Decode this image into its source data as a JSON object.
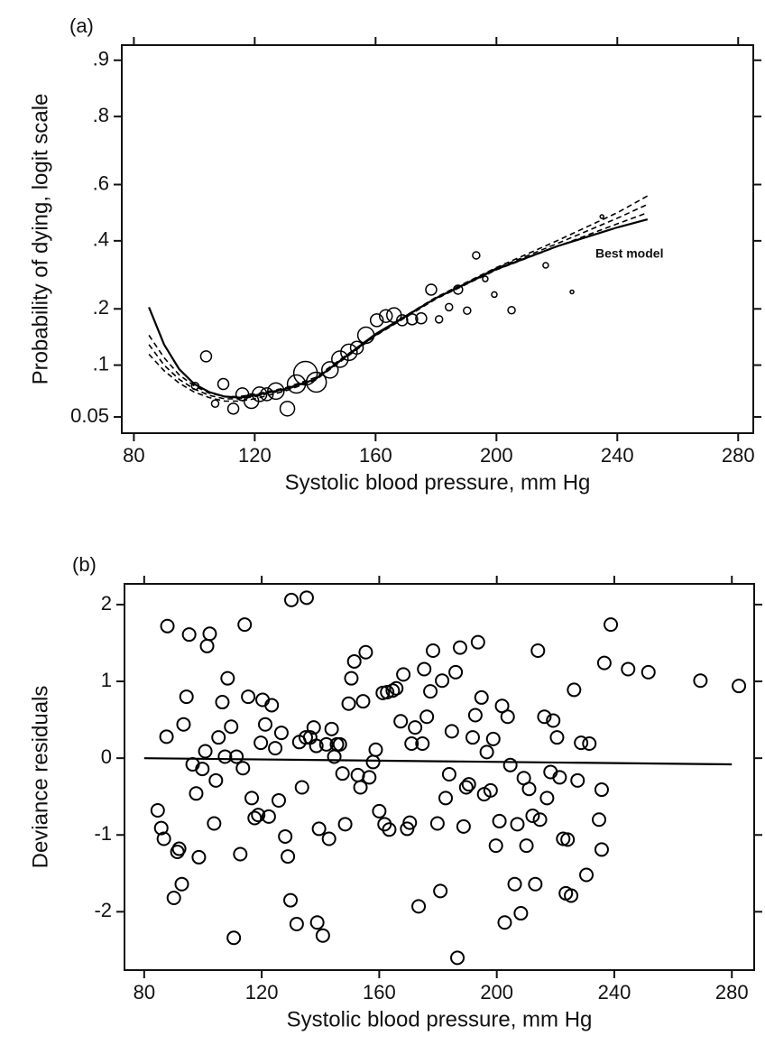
{
  "chart_data": [
    {
      "type": "scatter",
      "title": "(a)",
      "xlabel": "Systolic blood pressure, mm Hg",
      "ylabel": "Probability of dying, logit scale",
      "yscale": "logit",
      "xlim": [
        76,
        285
      ],
      "ylim": [
        0.04,
        0.918
      ],
      "xticks": [
        80,
        120,
        160,
        200,
        240,
        280
      ],
      "yticks": [
        0.05,
        {
          "value": 0.1,
          "label": ".1"
        },
        {
          "value": 0.2,
          "label": ".2"
        },
        {
          "value": 0.4,
          "label": ".4"
        },
        {
          "value": 0.6,
          "label": ".6"
        },
        {
          "value": 0.8,
          "label": ".8"
        },
        {
          "value": 0.9,
          "label": ".9"
        }
      ],
      "points": {
        "color": "#000000",
        "x": [
          103.9,
          100.3,
          106.9,
          109.6,
          112.9,
          115.9,
          118.9,
          121.6,
          124,
          127,
          130.8,
          133.8,
          136.8,
          140.4,
          144.9,
          148.2,
          151.2,
          153.8,
          156.8,
          160.4,
          163.4,
          166.1,
          168.8,
          172.1,
          175.1,
          178.4,
          181,
          184.3,
          187.3,
          190.3,
          193.3,
          196.3,
          199.3,
          205,
          216.3,
          225,
          234.9
        ],
        "values": [
          0.112,
          0.076,
          0.06,
          0.078,
          0.056,
          0.068,
          0.062,
          0.068,
          0.068,
          0.071,
          0.056,
          0.078,
          0.09,
          0.08,
          0.094,
          0.108,
          0.118,
          0.125,
          0.146,
          0.175,
          0.184,
          0.186,
          0.175,
          0.177,
          0.179,
          0.248,
          0.177,
          0.204,
          0.248,
          0.196,
          0.351,
          0.278,
          0.235,
          0.197,
          0.319,
          0.242,
          0.486
        ],
        "sizes": [
          6,
          4,
          4,
          6,
          6,
          7,
          8,
          8,
          7,
          9,
          8,
          10,
          13,
          11,
          9,
          9,
          9,
          7,
          9,
          7,
          7,
          8,
          6,
          6,
          6,
          6,
          4,
          4,
          5,
          4,
          4,
          3,
          3,
          4,
          3,
          2,
          2
        ]
      },
      "series": [
        {
          "name": "Best model",
          "color": "#000000",
          "dash": false,
          "x": [
            85,
            90,
            95,
            100,
            105,
            110,
            115,
            120,
            130,
            140,
            160,
            180,
            200,
            220,
            240,
            250
          ],
          "values": [
            0.204,
            0.13,
            0.095,
            0.078,
            0.07,
            0.066,
            0.065,
            0.067,
            0.073,
            0.083,
            0.148,
            0.226,
            0.307,
            0.381,
            0.447,
            0.476
          ]
        },
        {
          "color": "#000000",
          "dash": true,
          "x": [
            85,
            90,
            95,
            100,
            105,
            110,
            115,
            120,
            130,
            140,
            160,
            180,
            200,
            220,
            240,
            250
          ],
          "values": [
            0.146,
            0.11,
            0.088,
            0.076,
            0.069,
            0.066,
            0.066,
            0.068,
            0.074,
            0.085,
            0.148,
            0.228,
            0.312,
            0.4,
            0.5,
            0.56
          ]
        },
        {
          "color": "#000000",
          "dash": true,
          "x": [
            85,
            90,
            95,
            100,
            105,
            110,
            115,
            120,
            130,
            140,
            160,
            180,
            200,
            220,
            240,
            250
          ],
          "values": [
            0.13,
            0.1,
            0.083,
            0.073,
            0.067,
            0.064,
            0.064,
            0.066,
            0.072,
            0.083,
            0.146,
            0.226,
            0.31,
            0.39,
            0.48,
            0.53
          ]
        },
        {
          "color": "#000000",
          "dash": true,
          "x": [
            85,
            90,
            95,
            100,
            105,
            110,
            115,
            120,
            130,
            140,
            160,
            180,
            200,
            220,
            240,
            250
          ],
          "values": [
            0.115,
            0.093,
            0.079,
            0.07,
            0.065,
            0.062,
            0.062,
            0.064,
            0.071,
            0.082,
            0.145,
            0.224,
            0.305,
            0.38,
            0.46,
            0.5
          ]
        }
      ]
    },
    {
      "type": "scatter",
      "title": "(b)",
      "xlabel": "Systolic blood pressure, mm Hg",
      "ylabel": "Deviance residuals",
      "xlim": [
        73.3,
        287.6
      ],
      "ylim": [
        -2.76,
        2.27
      ],
      "xticks": [
        80,
        120,
        160,
        200,
        240,
        280
      ],
      "yticks": [
        -2,
        -1,
        0,
        1,
        2
      ],
      "points": {
        "color": "#000000",
        "x": [
          84.6,
          85.8,
          86.7,
          87.9,
          87.6,
          90.1,
          91.3,
          91.9,
          92.8,
          93.4,
          94.4,
          95.3,
          96.5,
          97.7,
          98.6,
          99.8,
          100.8,
          101.4,
          102.3,
          103.8,
          104.4,
          105.3,
          106.6,
          107.5,
          108.4,
          109.6,
          110.5,
          111.4,
          112.7,
          113.6,
          114.2,
          115.4,
          116.6,
          117.6,
          118.8,
          119.7,
          120.3,
          121.2,
          122.4,
          123.4,
          124.6,
          125.8,
          126.7,
          128,
          128.9,
          129.8,
          130.1,
          131.9,
          132.8,
          133.7,
          135,
          135.3,
          136.5,
          137.7,
          138.6,
          139.5,
          138.9,
          140.8,
          142,
          142.9,
          143.8,
          144.7,
          145.6,
          146.6,
          147.5,
          148.4,
          149.6,
          150.5,
          151.5,
          152.7,
          153.6,
          154.5,
          155.4,
          156.6,
          157.9,
          158.8,
          160,
          161.2,
          161.8,
          162.7,
          163.4,
          164.6,
          165.8,
          167.3,
          168.2,
          169.5,
          170.4,
          171,
          172.2,
          173.4,
          174.7,
          175.3,
          176.2,
          177.4,
          178.3,
          179.8,
          180.8,
          181.4,
          182.6,
          183.8,
          184.7,
          186,
          186.6,
          187.5,
          188.7,
          189.6,
          190.5,
          191.8,
          192.7,
          193.6,
          194.8,
          195.7,
          196.6,
          197.9,
          198.8,
          199.7,
          200.9,
          201.8,
          202.7,
          203.7,
          204.6,
          206.1,
          207,
          208.2,
          209.2,
          210.1,
          211,
          212.2,
          213.1,
          214,
          214.7,
          216.2,
          217.1,
          218.3,
          219.2,
          220.5,
          221.4,
          222.6,
          223.5,
          224.1,
          225.3,
          226.3,
          227.5,
          228.7,
          230.5,
          231.5,
          234.8,
          235.7,
          236.6,
          238.8,
          235.7,
          244.7,
          251.6,
          269.3,
          282.4
        ],
        "values": [
          -0.68,
          -0.91,
          -1.05,
          1.72,
          0.28,
          -1.82,
          -1.22,
          -1.18,
          -1.64,
          0.44,
          0.8,
          1.61,
          -0.08,
          -0.46,
          -1.29,
          -0.14,
          0.09,
          1.46,
          1.62,
          -0.85,
          -0.29,
          0.27,
          0.73,
          0.02,
          1.04,
          0.41,
          -2.34,
          0.02,
          -1.25,
          -0.13,
          1.74,
          0.8,
          -0.52,
          -0.78,
          -0.74,
          0.2,
          0.76,
          0.44,
          -0.76,
          0.69,
          0.13,
          -0.55,
          0.33,
          -1.02,
          -1.28,
          -1.85,
          2.06,
          -2.16,
          0.21,
          -0.38,
          0.27,
          2.09,
          0.27,
          0.4,
          0.16,
          -0.92,
          -2.14,
          -2.31,
          0.18,
          -1.05,
          0.38,
          0.02,
          0.18,
          0.18,
          -0.2,
          -0.86,
          0.71,
          1.04,
          1.26,
          -0.22,
          -0.38,
          0.74,
          1.38,
          -0.25,
          -0.05,
          0.11,
          -0.69,
          0.85,
          -0.86,
          0.86,
          -0.93,
          0.88,
          0.91,
          0.48,
          1.09,
          -0.92,
          -0.84,
          0.19,
          0.4,
          -1.93,
          0.19,
          1.16,
          0.54,
          0.87,
          1.4,
          -0.85,
          -1.73,
          1.01,
          -0.52,
          -0.21,
          0.35,
          1.12,
          -2.6,
          1.44,
          -0.89,
          -0.38,
          -0.34,
          0.27,
          0.56,
          1.51,
          0.79,
          -0.47,
          0.08,
          -0.42,
          0.25,
          -1.14,
          -0.82,
          0.68,
          -2.14,
          0.54,
          -0.09,
          -1.64,
          -0.86,
          -2.02,
          -0.26,
          -1.14,
          -0.4,
          -0.75,
          -1.64,
          1.4,
          -0.8,
          0.54,
          -0.52,
          -0.18,
          0.49,
          0.27,
          -0.25,
          -1.05,
          -1.76,
          -1.06,
          -1.79,
          0.89,
          -0.29,
          0.2,
          -1.52,
          0.19,
          -0.8,
          -0.41,
          1.24,
          1.74,
          -1.19,
          1.16,
          1.12,
          1.01,
          0.94
        ]
      },
      "series": [
        {
          "color": "#000000",
          "dash": false,
          "x": [
            80,
            280
          ],
          "values": [
            0,
            -0.08
          ]
        }
      ]
    }
  ]
}
